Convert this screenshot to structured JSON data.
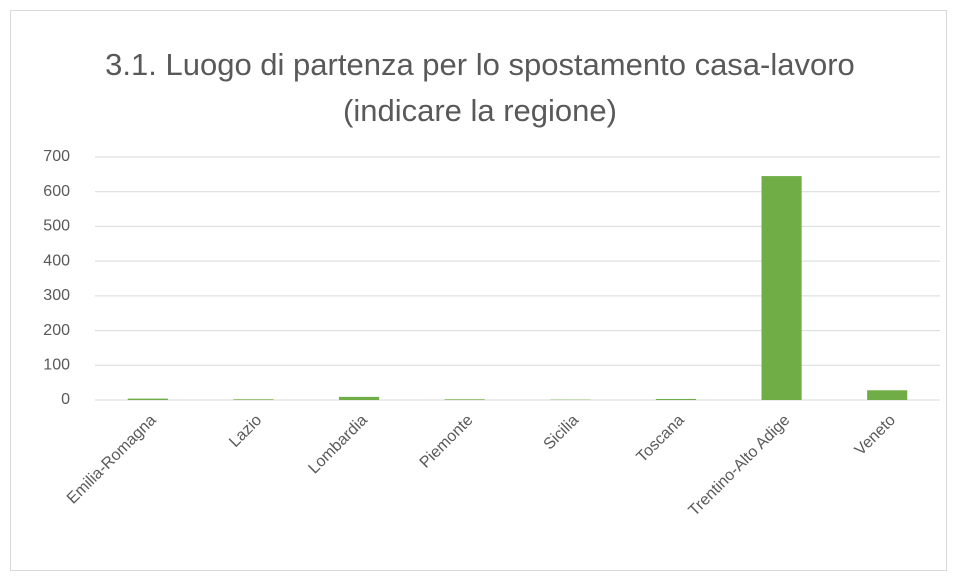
{
  "chart_data": {
    "type": "bar",
    "title": "3.1. Luogo di partenza per lo spostamento casa-lavoro (indicare la regione)",
    "categories": [
      "Emilia-Romagna",
      "Lazio",
      "Lombardia",
      "Piemonte",
      "Sicilia",
      "Toscana",
      "Trentino-Alto Adige",
      "Veneto"
    ],
    "values": [
      4,
      2,
      9,
      2,
      1,
      3,
      645,
      28
    ],
    "color": "#70ad47",
    "ylim": [
      0,
      700
    ],
    "yticks": [
      0,
      100,
      200,
      300,
      400,
      500,
      600,
      700
    ],
    "grid": true
  }
}
